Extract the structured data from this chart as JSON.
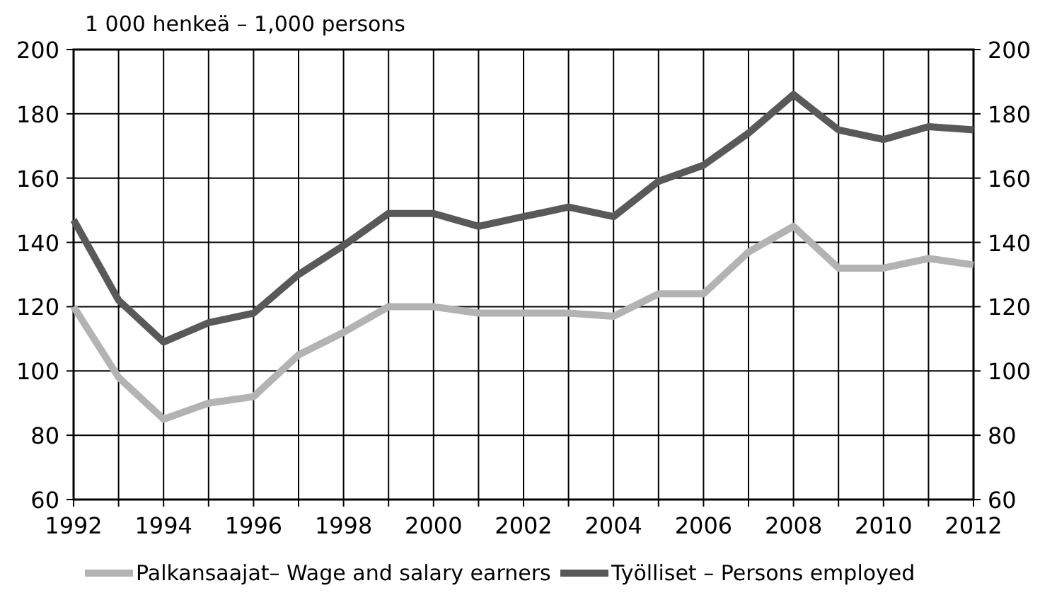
{
  "chart_data": {
    "type": "line",
    "title": "1 000 henkeä – 1,000 persons",
    "x": [
      1992,
      1993,
      1994,
      1995,
      1996,
      1997,
      1998,
      1999,
      2000,
      2001,
      2002,
      2003,
      2004,
      2005,
      2006,
      2007,
      2008,
      2009,
      2010,
      2011,
      2012
    ],
    "series": [
      {
        "name": "Palkansaajat– Wage and salary earners",
        "color": "#b3b3b3",
        "values": [
          120,
          98,
          85,
          90,
          92,
          105,
          112,
          120,
          120,
          118,
          118,
          118,
          117,
          124,
          124,
          137,
          145,
          132,
          132,
          135,
          133
        ]
      },
      {
        "name": "Työlliset – Persons employed",
        "color": "#595959",
        "values": [
          147,
          122,
          109,
          115,
          118,
          130,
          139,
          149,
          149,
          145,
          148,
          151,
          148,
          159,
          164,
          174,
          186,
          175,
          172,
          176,
          175
        ]
      }
    ],
    "xlim": [
      1992,
      2012
    ],
    "xticks": [
      1992,
      {
        "value": 1993,
        "label": null
      },
      1994,
      {
        "value": 1995,
        "label": null
      },
      1996,
      {
        "value": 1997,
        "label": null
      },
      1998,
      {
        "value": 1999,
        "label": null
      },
      2000,
      {
        "value": 2001,
        "label": null
      },
      2002,
      {
        "value": 2003,
        "label": null
      },
      2004,
      {
        "value": 2005,
        "label": null
      },
      2006,
      {
        "value": 2007,
        "label": null
      },
      2008,
      {
        "value": 2009,
        "label": null
      },
      2010,
      {
        "value": 2011,
        "label": null
      },
      2012
    ],
    "ylim": [
      60,
      200
    ],
    "yticks": [
      60,
      80,
      100,
      120,
      140,
      160,
      180,
      200
    ],
    "y2lim": [
      60,
      200
    ],
    "y2ticks": [
      60,
      80,
      100,
      120,
      140,
      160,
      180,
      200
    ],
    "grid": true,
    "legend": "bottom",
    "marker": "none",
    "line_style": "solid"
  }
}
